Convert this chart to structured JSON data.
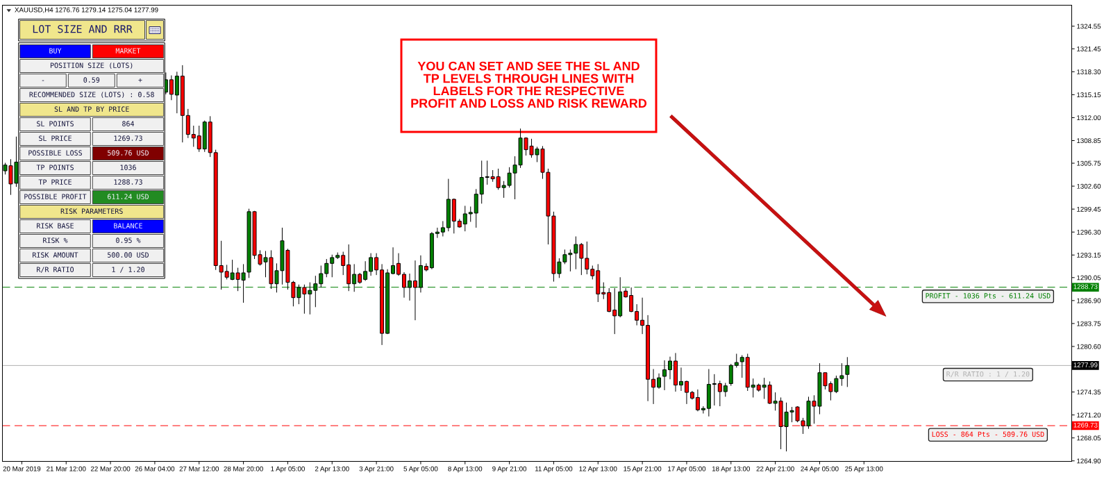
{
  "chart_data": [
    {
      "type": "candlestick",
      "title": "XAUUSD,H4 1276.76 1279.14 1275.04 1277.99",
      "categories": [
        null,
        null,
        null,
        "20 Mar 2019",
        null,
        null,
        null,
        null,
        null,
        null,
        null,
        "21 Mar 12:00",
        null,
        null,
        null,
        null,
        null,
        null,
        null,
        "22 Mar 20:00",
        null,
        null,
        null,
        null,
        null,
        null,
        null,
        "26 Mar 04:00",
        null,
        null,
        null,
        null,
        null,
        null,
        null,
        "27 Mar 12:00",
        null,
        null,
        null,
        null,
        null,
        null,
        null,
        "28 Mar 20:00",
        null,
        null,
        null,
        null,
        null,
        null,
        null,
        "1 Apr 05:00",
        null,
        null,
        null,
        null,
        null,
        null,
        null,
        "2 Apr 13:00",
        null,
        null,
        null,
        null,
        null,
        null,
        null,
        "3 Apr 21:00",
        null,
        null,
        null,
        null,
        null,
        null,
        null,
        "5 Apr 05:00",
        null,
        null,
        null,
        null,
        null,
        null,
        null,
        "8 Apr 13:00",
        null,
        null,
        null,
        null,
        null,
        null,
        null,
        "9 Apr 21:00",
        null,
        null,
        null,
        null,
        null,
        null,
        null,
        "11 Apr 05:00",
        null,
        null,
        null,
        null,
        null,
        null,
        null,
        "12 Apr 13:00",
        null,
        null,
        null,
        null,
        null,
        null,
        null,
        "15 Apr 21:00",
        null,
        null,
        null,
        null,
        null,
        null,
        null,
        "17 Apr 05:00",
        null,
        null,
        null,
        null,
        null,
        null,
        null,
        "18 Apr 13:00",
        null,
        null,
        null,
        null,
        null,
        null,
        null,
        "22 Apr 21:00",
        null,
        null,
        null,
        null,
        null,
        null,
        null,
        "24 Apr 05:00",
        null,
        null,
        null,
        null,
        null,
        null,
        null,
        "25 Apr 13:00",
        null,
        null,
        null,
        null,
        null,
        null,
        null,
        null,
        null,
        null,
        null,
        null,
        null,
        null,
        null,
        null,
        null,
        null,
        null,
        null,
        null,
        null,
        null,
        null,
        null,
        null,
        null,
        null,
        null,
        null,
        null,
        null,
        null,
        null,
        null,
        null,
        null
      ],
      "ohlc": [
        [
          1304.7,
          1305.8,
          1304.2,
          1305.5
        ],
        [
          1305.4,
          1306.3,
          1301.4,
          1302.9
        ],
        [
          1303.0,
          1309.4,
          1302.5,
          1305.9
        ],
        null,
        null,
        null,
        null,
        null,
        null,
        null,
        null,
        null,
        null,
        null,
        null,
        null,
        null,
        null,
        null,
        null,
        null,
        null,
        null,
        null,
        null,
        null,
        null,
        null,
        null,
        [
          1315.5,
          1318.2,
          1315.2,
          1317.2
        ],
        [
          1317.2,
          1317.8,
          1314.4,
          1315.2
        ],
        [
          1315.1,
          1318.3,
          1312.6,
          1317.7
        ],
        [
          1317.7,
          1319.2,
          1308.6,
          1312.3
        ],
        [
          1312.3,
          1313.2,
          1309.2,
          1309.7
        ],
        [
          1309.7,
          1310.9,
          1308.0,
          1309.2
        ],
        [
          1309.5,
          1310.9,
          1307.3,
          1307.7
        ],
        [
          1307.7,
          1311.6,
          1307.3,
          1311.4
        ],
        [
          1311.4,
          1312.2,
          1306.6,
          1307.2
        ],
        [
          1307.2,
          1307.6,
          1291.1,
          1291.7
        ],
        [
          1291.7,
          1295.1,
          1288.4,
          1290.8
        ],
        [
          1290.9,
          1291.8,
          1289.8,
          1290.1
        ],
        [
          1289.8,
          1292.5,
          1289.7,
          1290.7
        ],
        [
          1290.7,
          1291.4,
          1288.2,
          1289.8
        ],
        [
          1289.7,
          1291.9,
          1286.6,
          1290.7
        ],
        [
          1290.8,
          1299.5,
          1290.0,
          1299.1
        ],
        [
          1299.1,
          1299.2,
          1292.6,
          1293.1
        ],
        [
          1293.2,
          1293.8,
          1291.7,
          1291.9
        ],
        [
          1292.2,
          1293.7,
          1290.1,
          1292.8
        ],
        [
          1292.8,
          1293.8,
          1288.5,
          1289.2
        ],
        [
          1289.2,
          1292.0,
          1288.0,
          1291.0
        ],
        [
          1291.0,
          1296.9,
          1289.1,
          1295.1
        ],
        [
          1293.8,
          1294.0,
          1288.4,
          1289.4
        ],
        [
          1289.4,
          1289.6,
          1286.1,
          1287.3
        ],
        [
          1287.3,
          1289.1,
          1286.4,
          1288.7
        ],
        [
          1288.7,
          1289.1,
          1285.1,
          1287.8
        ],
        [
          1287.8,
          1289.4,
          1285.0,
          1288.3
        ],
        [
          1288.3,
          1290.3,
          1286.0,
          1289.2
        ],
        [
          1289.2,
          1291.7,
          1288.7,
          1290.6
        ],
        [
          1290.6,
          1292.6,
          1290.1,
          1292.0
        ],
        [
          1292.0,
          1293.2,
          1290.1,
          1292.8
        ],
        [
          1292.8,
          1293.5,
          1292.6,
          1293.1
        ],
        [
          1293.1,
          1293.6,
          1290.4,
          1291.7
        ],
        [
          1291.8,
          1294.6,
          1288.2,
          1289.2
        ],
        [
          1289.2,
          1291.9,
          1288.1,
          1290.5
        ],
        [
          1290.5,
          1290.7,
          1289.2,
          1289.4
        ],
        [
          1289.8,
          1292.3,
          1289.6,
          1290.9
        ],
        [
          1290.9,
          1293.4,
          1290.3,
          1292.8
        ],
        [
          1292.8,
          1293.4,
          1290.4,
          1291.1
        ],
        [
          1291.1,
          1291.9,
          1280.8,
          1282.4
        ],
        [
          1282.4,
          1291.2,
          1282.3,
          1290.7
        ],
        [
          1290.6,
          1294.2,
          1290.5,
          1291.7
        ],
        [
          1292.0,
          1293.4,
          1290.3,
          1290.5
        ],
        [
          1290.5,
          1290.8,
          1287.3,
          1288.7
        ],
        [
          1288.7,
          1290.6,
          1286.9,
          1289.6
        ],
        [
          1289.6,
          1292.4,
          1284.2,
          1288.7
        ],
        [
          1288.7,
          1293.1,
          1288.0,
          1291.7
        ],
        [
          1291.6,
          1292.0,
          1290.9,
          1291.1
        ],
        [
          1291.4,
          1296.3,
          1291.2,
          1296.1
        ],
        [
          1296.1,
          1296.9,
          1295.5,
          1296.3
        ],
        [
          1296.3,
          1297.8,
          1295.7,
          1296.9
        ],
        [
          1296.9,
          1303.6,
          1296.4,
          1300.8
        ],
        [
          1300.8,
          1300.9,
          1296.1,
          1297.8
        ],
        [
          1297.8,
          1298.1,
          1296.9,
          1297.0
        ],
        [
          1297.4,
          1299.9,
          1296.4,
          1298.8
        ],
        [
          1298.8,
          1299.8,
          1297.7,
          1299.0
        ],
        [
          1298.9,
          1302.2,
          1296.9,
          1301.5
        ],
        [
          1301.5,
          1306.1,
          1300.2,
          1303.8
        ],
        [
          1303.8,
          1306.1,
          1302.8,
          1303.9
        ],
        [
          1303.9,
          1304.8,
          1303.2,
          1303.6
        ],
        [
          1303.9,
          1305.0,
          1302.1,
          1302.4
        ],
        [
          1302.4,
          1303.3,
          1301.0,
          1302.7
        ],
        [
          1302.7,
          1305.2,
          1302.4,
          1304.4
        ],
        [
          1304.4,
          1306.7,
          1300.8,
          1305.5
        ],
        [
          1305.5,
          1310.5,
          1305.1,
          1309.2
        ],
        [
          1309.2,
          1309.3,
          1306.8,
          1307.6
        ],
        [
          1308.1,
          1309.1,
          1306.5,
          1306.9
        ],
        [
          1306.9,
          1308.0,
          1305.9,
          1307.7
        ],
        [
          1307.7,
          1308.1,
          1303.6,
          1304.5
        ],
        [
          1304.5,
          1305.0,
          1294.6,
          1298.5
        ],
        [
          1298.5,
          1299.1,
          1289.5,
          1290.6
        ],
        [
          1290.6,
          1292.7,
          1290.0,
          1292.2
        ],
        [
          1292.2,
          1293.9,
          1291.9,
          1293.2
        ],
        [
          1293.2,
          1293.9,
          1290.9,
          1293.4
        ],
        [
          1293.4,
          1295.7,
          1291.2,
          1294.6
        ],
        [
          1294.6,
          1294.8,
          1290.4,
          1292.7
        ],
        [
          1292.7,
          1295.0,
          1290.5,
          1291.2
        ],
        [
          1291.2,
          1291.7,
          1289.8,
          1290.3
        ],
        [
          1291.0,
          1291.9,
          1286.7,
          1287.8
        ],
        [
          1288.0,
          1289.4,
          1287.1,
          1287.8
        ],
        [
          1288.0,
          1288.6,
          1285.3,
          1285.4
        ],
        [
          1285.6,
          1288.6,
          1282.3,
          1284.8
        ],
        [
          1284.8,
          1290.1,
          1284.6,
          1288.1
        ],
        [
          1288.2,
          1288.6,
          1287.3,
          1287.4
        ],
        [
          1287.6,
          1288.7,
          1285.3,
          1285.4
        ],
        [
          1285.4,
          1286.4,
          1283.5,
          1284.2
        ],
        [
          1284.2,
          1287.3,
          1282.3,
          1283.5
        ],
        [
          1283.5,
          1284.9,
          1273.1,
          1276.1
        ],
        [
          1276.1,
          1277.5,
          1272.7,
          1275.0
        ],
        [
          1275.0,
          1276.9,
          1274.8,
          1276.3
        ],
        [
          1276.5,
          1278.7,
          1274.6,
          1277.4
        ],
        [
          1277.4,
          1279.2,
          1276.1,
          1278.6
        ],
        [
          1278.6,
          1279.7,
          1274.4,
          1275.3
        ],
        [
          1275.3,
          1277.7,
          1274.5,
          1275.8
        ],
        [
          1275.8,
          1275.9,
          1272.7,
          1274.3
        ],
        [
          1274.3,
          1274.5,
          1273.3,
          1273.5
        ],
        [
          1273.6,
          1274.7,
          1271.7,
          1271.9
        ],
        [
          1271.9,
          1272.4,
          1271.4,
          1272.1
        ],
        [
          1272.1,
          1277.5,
          1271.0,
          1275.4
        ],
        [
          1275.4,
          1276.8,
          1272.5,
          1275.5
        ],
        [
          1275.5,
          1275.9,
          1272.4,
          1274.4
        ],
        [
          1274.4,
          1275.6,
          1273.7,
          1275.2
        ],
        [
          1275.5,
          1278.2,
          1275.2,
          1278.0
        ],
        [
          1278.0,
          1279.6,
          1277.7,
          1278.4
        ],
        [
          1278.5,
          1279.4,
          1276.3,
          1279.1
        ],
        [
          1279.1,
          1279.6,
          1274.5,
          1275.0
        ],
        [
          1275.0,
          1276.2,
          1273.6,
          1275.3
        ],
        [
          1275.3,
          1275.5,
          1274.4,
          1274.6
        ],
        [
          1275.0,
          1276.3,
          1273.4,
          1275.3
        ],
        [
          1275.3,
          1275.8,
          1272.7,
          1272.8
        ],
        [
          1272.8,
          1274.3,
          1271.8,
          1273.1
        ],
        [
          1273.1,
          1273.6,
          1266.5,
          1269.6
        ],
        [
          1269.6,
          1272.9,
          1266.2,
          1271.6
        ],
        [
          1271.6,
          1272.3,
          1270.2,
          1271.8
        ],
        [
          1272.3,
          1272.4,
          1270.2,
          1270.4
        ],
        [
          1270.4,
          1270.8,
          1268.6,
          1269.7
        ],
        [
          1269.7,
          1273.7,
          1269.3,
          1273.1
        ],
        [
          1273.1,
          1273.9,
          1270.0,
          1272.4
        ],
        [
          1272.4,
          1278.3,
          1271.3,
          1277.0
        ],
        [
          1277.0,
          1277.0,
          1274.7,
          1275.2
        ],
        [
          1275.5,
          1275.8,
          1273.2,
          1274.4
        ],
        [
          1274.4,
          1276.6,
          1274.2,
          1276.2
        ],
        [
          1276.2,
          1278.3,
          1275.2,
          1276.6
        ],
        [
          1276.76,
          1279.14,
          1275.04,
          1277.99
        ],
        null,
        null,
        null,
        null,
        null,
        null,
        null,
        null,
        null,
        null,
        null,
        null,
        null,
        null,
        null,
        null,
        null,
        null,
        null,
        null,
        null,
        null,
        null,
        null,
        null,
        null,
        null,
        null,
        null,
        null,
        null,
        null,
        null,
        null,
        null,
        null,
        null,
        null,
        null,
        null
      ],
      "colors": [
        "#008000",
        "#ff0000",
        "#008000",
        null,
        null,
        null,
        null,
        null,
        null,
        null,
        null,
        null,
        null,
        null,
        null,
        null,
        null,
        null,
        null,
        null,
        null,
        null,
        null,
        null,
        null,
        null,
        null,
        null,
        null,
        "#008000",
        "#ff0000",
        "#008000",
        "#ff0000",
        "#ff0000",
        "#ff0000",
        "#ff0000",
        "#008000",
        "#ff0000",
        "#ff0000",
        "#ff0000",
        "#ff0000",
        "#008000",
        "#ff0000",
        "#008000",
        "#008000",
        "#ff0000",
        "#ff0000",
        "#008000",
        "#ff0000",
        "#008000",
        "#008000",
        "#ff0000",
        "#ff0000",
        "#008000",
        "#ff0000",
        "#008000",
        "#008000",
        "#008000",
        "#008000",
        "#008000",
        "#008000",
        "#ff0000",
        "#ff0000",
        "#008000",
        "#ff0000",
        "#008000",
        "#008000",
        "#ff0000",
        "#ff0000",
        "#008000",
        "#008000",
        "#ff0000",
        "#ff0000",
        "#008000",
        "#ff0000",
        "#008000",
        "#ff0000",
        "#008000",
        "#008000",
        "#008000",
        "#008000",
        "#ff0000",
        "#ff0000",
        "#008000",
        "#008000",
        "#008000",
        "#008000",
        "#008000",
        "#ff0000",
        "#ff0000",
        "#008000",
        "#008000",
        "#008000",
        "#008000",
        "#ff0000",
        "#ff0000",
        "#008000",
        "#ff0000",
        "#ff0000",
        "#ff0000",
        "#008000",
        "#008000",
        "#008000",
        "#008000",
        "#ff0000",
        "#ff0000",
        "#ff0000",
        "#ff0000",
        "#ff0000",
        "#ff0000",
        "#ff0000",
        "#008000",
        "#ff0000",
        "#ff0000",
        "#ff0000",
        "#ff0000",
        "#ff0000",
        "#ff0000",
        "#008000",
        "#008000",
        "#008000",
        "#ff0000",
        "#008000",
        "#ff0000",
        "#ff0000",
        "#ff0000",
        "#008000",
        "#008000",
        "#008000",
        "#ff0000",
        "#008000",
        "#008000",
        "#008000",
        "#008000",
        "#ff0000",
        "#008000",
        "#ff0000",
        "#008000",
        "#ff0000",
        "#008000",
        "#ff0000",
        "#008000",
        "#008000",
        "#ff0000",
        "#ff0000",
        "#008000",
        "#ff0000",
        "#008000",
        "#ff0000",
        "#ff0000",
        "#008000",
        "#008000",
        "#008000",
        null,
        null,
        null,
        null,
        null,
        null,
        null,
        null,
        null,
        null,
        null,
        null,
        null,
        null,
        null,
        null,
        null,
        null,
        null,
        null,
        null,
        null,
        null,
        null,
        null,
        null,
        null,
        null,
        null,
        null,
        null,
        null,
        null,
        null,
        null,
        null,
        null,
        null,
        null,
        null
      ],
      "ylim": [
        1264.83,
        1327.43
      ],
      "yticks": [
        {
          "value": 1264.9,
          "label": "1264.90"
        },
        {
          "value": 1268.05,
          "label": "1268.05"
        },
        {
          "value": 1271.2,
          "label": "1271.20"
        },
        {
          "value": 1274.35,
          "label": "1274.35"
        },
        {
          "value": 1280.6,
          "label": "1280.60"
        },
        {
          "value": 1283.75,
          "label": "1283.75"
        },
        {
          "value": 1286.9,
          "label": "1286.90"
        },
        {
          "value": 1290.05,
          "label": "1290.05"
        },
        {
          "value": 1293.15,
          "label": "1293.15"
        },
        {
          "value": 1296.3,
          "label": "1296.30"
        },
        {
          "value": 1299.45,
          "label": "1299.45"
        },
        {
          "value": 1302.6,
          "label": "1302.60"
        },
        {
          "value": 1305.75,
          "label": "1305.75"
        },
        {
          "value": 1308.85,
          "label": "1308.85"
        },
        {
          "value": 1312.0,
          "label": "1312.00"
        },
        {
          "value": 1315.15,
          "label": "1315.15"
        },
        {
          "value": 1318.3,
          "label": "1318.30"
        },
        {
          "value": 1321.45,
          "label": "1321.45"
        },
        {
          "value": 1324.55,
          "label": "1324.55"
        }
      ],
      "ref_lines": [
        {
          "axis": "y",
          "value": 1288.73,
          "label": "1288.73",
          "color": "#008000",
          "line_style": "dashed"
        },
        {
          "axis": "y",
          "value": 1277.99,
          "label": "1277.99",
          "color": "#b0b0b0",
          "line_style": "solid"
        },
        {
          "axis": "y",
          "value": 1269.73,
          "label": "1269.73",
          "color": "#ff0000",
          "line_style": "dashed"
        }
      ],
      "annotations": [
        "YOU CAN SET AND SEE THE SL AND\nTP LEVELS THROUGH LINES WITH\nLABELS FOR THE RESPECTIVE\nPROFIT AND LOSS AND RISK REWARD",
        {
          "text": "PROFIT - 1036 Pts - 611.24 USD",
          "y": 1288.73
        },
        {
          "text": "R/R RATIO : 1 / 1.20",
          "y": 1277.99
        },
        {
          "text": "LOSS - 864 Pts - 509.76 USD",
          "y": 1269.73
        }
      ]
    },
    {
      "type": "other",
      "title": "LOT SIZE AND RRR",
      "annotations": [
        "BUY",
        "MARKET",
        "POSITION SIZE (LOTS)",
        "-",
        "0.59",
        "+",
        "RECOMMENDED SIZE (LOTS) : 0.58",
        "SL AND TP BY PRICE",
        "SL POINTS",
        "864",
        "SL PRICE",
        "1269.73",
        "POSSIBLE LOSS",
        "509.76 USD",
        "TP POINTS",
        "1036",
        "TP PRICE",
        "1288.73",
        "POSSIBLE PROFIT",
        "611.24 USD",
        "RISK PARAMETERS",
        "RISK BASE",
        "BALANCE",
        "RISK %",
        "0.95 %",
        "RISK AMOUNT",
        "500.00 USD",
        "R/R RATIO",
        "1 / 1.20"
      ],
      "colors": [
        "#0000ff",
        "#ff0000",
        "#f0f0f0",
        "#f0f0f0",
        "#f0f0f0",
        "#f0f0f0",
        "#f0f0f0",
        "#f0e68c",
        "#f0f0f0",
        "#f0f0f0",
        "#f0f0f0",
        "#f0f0f0",
        "#f0f0f0",
        "#800000",
        "#f0f0f0",
        "#f0f0f0",
        "#f0f0f0",
        "#f0f0f0",
        "#f0f0f0",
        "#228b22",
        "#f0e68c",
        "#f0f0f0",
        "#0000ff",
        "#f0f0f0",
        "#f0f0f0",
        "#f0f0f0",
        "#f0f0f0",
        "#f0f0f0",
        "#f0f0f0"
      ]
    }
  ]
}
